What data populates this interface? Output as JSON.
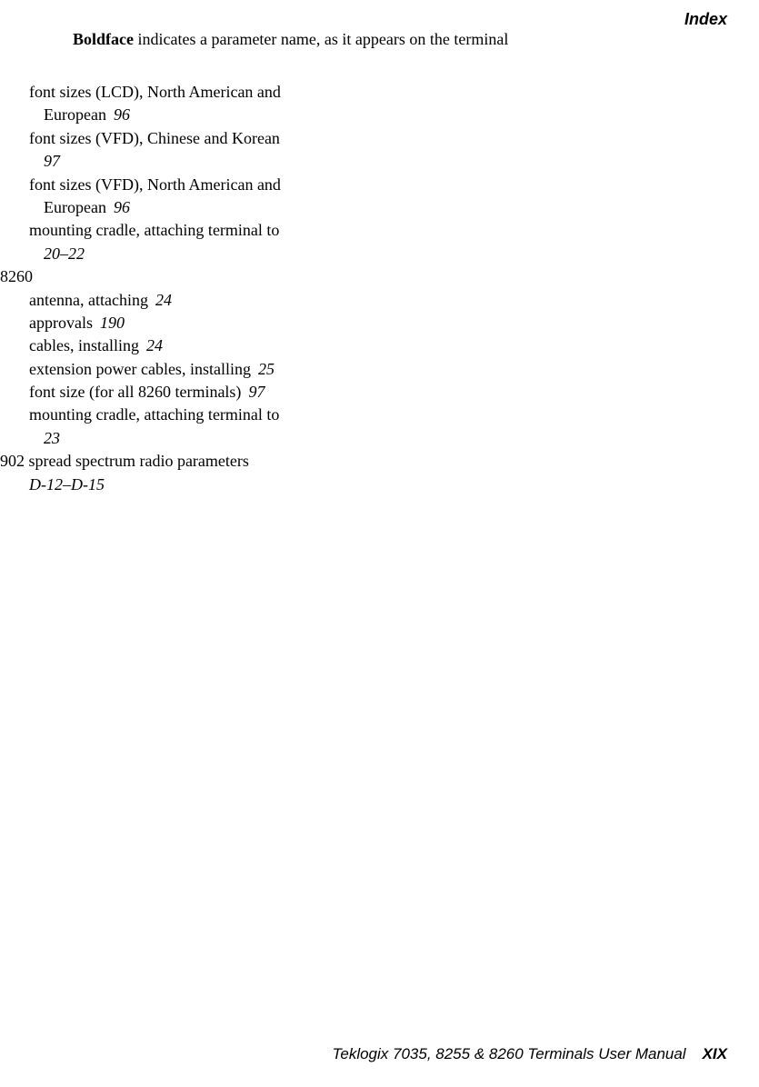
{
  "header": {
    "title": "Index"
  },
  "intro": {
    "bold": "Boldface",
    "rest": " indicates a parameter name, as it appears on the terminal"
  },
  "entries": [
    {
      "level": 1,
      "text": "font sizes (LCD), North American and",
      "page": ""
    },
    {
      "level": 2,
      "text": "European",
      "page": "96"
    },
    {
      "level": 1,
      "text": "font sizes (VFD), Chinese and Korean",
      "page": ""
    },
    {
      "level": 2,
      "text": "",
      "page": "97"
    },
    {
      "level": 1,
      "text": "font sizes (VFD), North American and",
      "page": ""
    },
    {
      "level": 2,
      "text": "European",
      "page": "96"
    },
    {
      "level": 1,
      "text": "mounting cradle, attaching terminal to",
      "page": ""
    },
    {
      "level": 2,
      "text": "",
      "page": "20–22"
    },
    {
      "level": 0,
      "text": "8260",
      "page": ""
    },
    {
      "level": 1,
      "text": "antenna, attaching",
      "page": "24"
    },
    {
      "level": 1,
      "text": "approvals",
      "page": "190"
    },
    {
      "level": 1,
      "text": "cables, installing",
      "page": "24"
    },
    {
      "level": 1,
      "text": "extension power cables, installing",
      "page": "25"
    },
    {
      "level": 1,
      "text": "font size (for all 8260 terminals)",
      "page": "97"
    },
    {
      "level": 1,
      "text": "mounting cradle, attaching terminal to",
      "page": ""
    },
    {
      "level": 2,
      "text": "",
      "page": "23"
    },
    {
      "level": 0,
      "text": "902 spread spectrum radio parameters",
      "page": ""
    },
    {
      "level": 1,
      "text": "",
      "page": "D-12–D-15"
    }
  ],
  "footer": {
    "text": "Teklogix 7035, 8255 & 8260 Terminals User Manual",
    "page": "XIX"
  }
}
